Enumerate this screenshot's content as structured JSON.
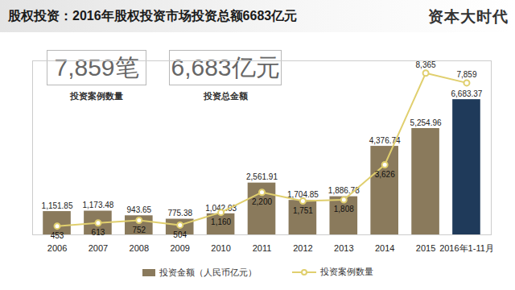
{
  "title": "股权投资：2016年股权投资市场投资总额6683亿元",
  "logo": "资本大时代",
  "kpis": [
    {
      "text": "7,859笔",
      "caption": "投资案例数量"
    },
    {
      "text": "6,683亿元",
      "caption": "投资总金额"
    }
  ],
  "chart_data": {
    "type": "bar",
    "categories": [
      "2006",
      "2007",
      "2008",
      "2009",
      "2010",
      "2011",
      "2012",
      "2013",
      "2014",
      "2015",
      "2016年1-11月"
    ],
    "series": [
      {
        "name": "投资金额（人民币亿元）",
        "type": "bar",
        "colors": [
          "#8a7a5c",
          "#8a7a5c",
          "#8a7a5c",
          "#8a7a5c",
          "#8a7a5c",
          "#8a7a5c",
          "#8a7a5c",
          "#8a7a5c",
          "#8a7a5c",
          "#8a7a5c",
          "#1f3a5a"
        ],
        "values": [
          1151.85,
          1173.48,
          943.65,
          775.38,
          1042.03,
          2561.91,
          1704.85,
          1886.78,
          4376.74,
          5254.96,
          6683.37
        ],
        "value_labels": [
          "1,151.85",
          "1,173.48",
          "943.65",
          "775.38",
          "1,042.03",
          "2,561.91",
          "1,704.85",
          "1,886.78",
          "4,376.74",
          "5,254.96",
          "6,683.37"
        ]
      },
      {
        "name": "投资案例数量",
        "type": "line",
        "axis": "y2",
        "color": "#e0cf6e",
        "marker": "circle",
        "values": [
          453,
          613,
          752,
          504,
          1160,
          2200,
          1751,
          1808,
          3626,
          8365,
          7859
        ],
        "value_labels": [
          "453",
          "613",
          "752",
          "504",
          "1,160",
          "2,200",
          "1,751",
          "1,808",
          "3,626",
          "8,365",
          "7,859"
        ]
      }
    ],
    "ylim": [
      0,
      8600
    ],
    "y2lim": [
      0,
      9000
    ],
    "tick_labels": "x",
    "data_labels": true,
    "grid": false,
    "legend": "bottom"
  }
}
